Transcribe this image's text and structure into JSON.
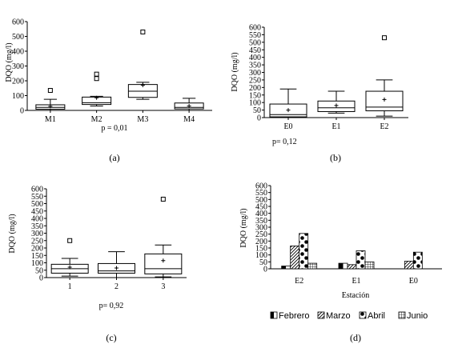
{
  "chart_data": [
    {
      "type": "box",
      "panel_label": "(a)",
      "ylabel": "DQO (mg/l)",
      "ylim": [
        0,
        600
      ],
      "yticks": [
        0,
        100,
        200,
        300,
        400,
        500,
        600
      ],
      "categories": [
        "M1",
        "M2",
        "M3",
        "M4"
      ],
      "p_text": "p = 0,01",
      "boxes": [
        {
          "min": 0,
          "q1": 8,
          "median": 20,
          "q3": 38,
          "max": 75,
          "mean": 28,
          "outliers": [
            135
          ]
        },
        {
          "min": 30,
          "q1": 40,
          "median": 52,
          "q3": 90,
          "max": 95,
          "mean": 85,
          "outliers": [
            215,
            245
          ]
        },
        {
          "min": 75,
          "q1": 88,
          "median": 130,
          "q3": 175,
          "max": 190,
          "mean": 170,
          "outliers": [
            530
          ]
        },
        {
          "min": 0,
          "q1": 10,
          "median": 20,
          "q3": 50,
          "max": 82,
          "mean": 30,
          "outliers": []
        }
      ]
    },
    {
      "type": "box",
      "panel_label": "(b)",
      "ylabel": "DQO (mg/l)",
      "ylim": [
        0,
        600
      ],
      "yticks": [
        0,
        50,
        100,
        150,
        200,
        250,
        300,
        350,
        400,
        450,
        500,
        550,
        600
      ],
      "categories": [
        "E0",
        "E1",
        "E2"
      ],
      "p_text": "p= 0,12",
      "boxes": [
        {
          "min": 0,
          "q1": 5,
          "median": 20,
          "q3": 90,
          "max": 190,
          "mean": 50,
          "outliers": []
        },
        {
          "min": 30,
          "q1": 40,
          "median": 65,
          "q3": 110,
          "max": 175,
          "mean": 80,
          "outliers": []
        },
        {
          "min": 10,
          "q1": 45,
          "median": 70,
          "q3": 175,
          "max": 250,
          "mean": 120,
          "outliers": [
            530
          ]
        }
      ]
    },
    {
      "type": "box",
      "panel_label": "(c)",
      "ylabel": "DQO (mg/l)",
      "ylim": [
        0,
        600
      ],
      "yticks": [
        0,
        50,
        100,
        150,
        200,
        250,
        300,
        350,
        400,
        450,
        500,
        550,
        600
      ],
      "categories": [
        "1",
        "2",
        "3"
      ],
      "p_text": "p= 0,92",
      "boxes": [
        {
          "min": 10,
          "q1": 30,
          "median": 60,
          "q3": 90,
          "max": 130,
          "mean": 70,
          "outliers": [
            250
          ]
        },
        {
          "min": 0,
          "q1": 30,
          "median": 45,
          "q3": 95,
          "max": 175,
          "mean": 65,
          "outliers": []
        },
        {
          "min": 5,
          "q1": 25,
          "median": 60,
          "q3": 160,
          "max": 220,
          "mean": 115,
          "outliers": [
            530
          ]
        }
      ]
    },
    {
      "type": "bar",
      "panel_label": "(d)",
      "ylabel": "DQO (mg/l)",
      "xlabel": "Estación",
      "ylim": [
        0,
        600
      ],
      "yticks": [
        0,
        50,
        100,
        150,
        200,
        250,
        300,
        350,
        400,
        450,
        500,
        550,
        600
      ],
      "categories": [
        "E2",
        "E1",
        "E0"
      ],
      "legend_position": "bottom",
      "series": [
        {
          "name": "Febrero",
          "pattern": "half",
          "values": [
            20,
            40,
            null
          ]
        },
        {
          "name": "Marzo",
          "pattern": "diagonal",
          "values": [
            165,
            30,
            55
          ]
        },
        {
          "name": "Abril",
          "pattern": "dots",
          "values": [
            255,
            130,
            120
          ]
        },
        {
          "name": "Junio",
          "pattern": "grid",
          "values": [
            40,
            50,
            null
          ]
        }
      ]
    }
  ]
}
